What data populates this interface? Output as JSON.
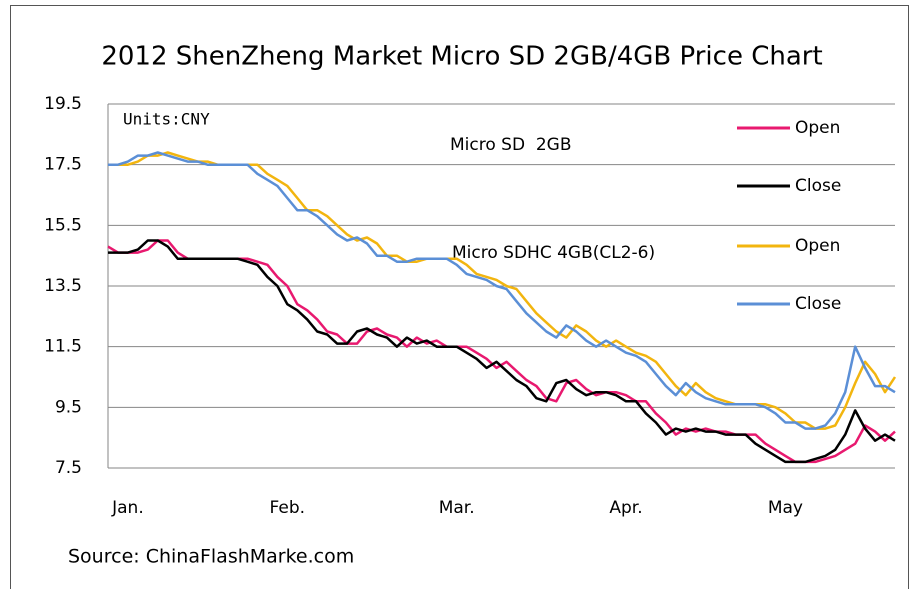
{
  "chart_data": {
    "type": "line",
    "title": "2012 ShenZheng Market Micro SD 2GB/4GB Price Chart",
    "units": "Units:CNY",
    "source": "Source: ChinaFlashMarke.com",
    "annotations": [
      "Micro SD  2GB",
      "Micro SDHC 4GB(CL2-6)"
    ],
    "categories": [
      null,
      null,
      "Jan.",
      null,
      null,
      null,
      null,
      null,
      null,
      null,
      null,
      null,
      null,
      null,
      null,
      null,
      null,
      null,
      "Feb.",
      null,
      null,
      null,
      null,
      null,
      null,
      null,
      null,
      null,
      null,
      null,
      null,
      null,
      null,
      null,
      null,
      "Mar.",
      null,
      null,
      null,
      null,
      null,
      null,
      null,
      null,
      null,
      null,
      null,
      null,
      null,
      null,
      null,
      null,
      "Apr.",
      null,
      null,
      null,
      null,
      null,
      null,
      null,
      null,
      null,
      null,
      null,
      null,
      null,
      null,
      null,
      "May",
      null,
      null,
      null,
      null,
      null,
      null,
      null,
      null,
      null,
      null,
      null
    ],
    "series": [
      {
        "name": "Open",
        "color": "#e8196f",
        "values": [
          14.8,
          14.6,
          14.6,
          14.6,
          14.7,
          15.0,
          15.0,
          14.6,
          14.4,
          14.4,
          14.4,
          14.4,
          14.4,
          14.4,
          14.4,
          14.3,
          14.2,
          13.8,
          13.5,
          12.9,
          12.7,
          12.4,
          12.0,
          11.9,
          11.6,
          11.6,
          12.0,
          12.1,
          11.9,
          11.8,
          11.5,
          11.8,
          11.6,
          11.7,
          11.5,
          11.5,
          11.5,
          11.3,
          11.1,
          10.8,
          11.0,
          10.7,
          10.4,
          10.2,
          9.8,
          9.7,
          10.3,
          10.4,
          10.1,
          9.9,
          10.0,
          10.0,
          9.9,
          9.7,
          9.7,
          9.3,
          9.0,
          8.6,
          8.8,
          8.7,
          8.8,
          8.7,
          8.7,
          8.6,
          8.6,
          8.6,
          8.3,
          8.1,
          7.9,
          7.7,
          7.7,
          7.7,
          7.8,
          7.9,
          8.1,
          8.3,
          8.9,
          8.7,
          8.4,
          8.7
        ]
      },
      {
        "name": "Close",
        "color": "#000000",
        "values": [
          14.6,
          14.6,
          14.6,
          14.7,
          15.0,
          15.0,
          14.8,
          14.4,
          14.4,
          14.4,
          14.4,
          14.4,
          14.4,
          14.4,
          14.3,
          14.2,
          13.8,
          13.5,
          12.9,
          12.7,
          12.4,
          12.0,
          11.9,
          11.6,
          11.6,
          12.0,
          12.1,
          11.9,
          11.8,
          11.5,
          11.8,
          11.6,
          11.7,
          11.5,
          11.5,
          11.5,
          11.3,
          11.1,
          10.8,
          11.0,
          10.7,
          10.4,
          10.2,
          9.8,
          9.7,
          10.3,
          10.4,
          10.1,
          9.9,
          10.0,
          10.0,
          9.9,
          9.7,
          9.7,
          9.3,
          9.0,
          8.6,
          8.8,
          8.7,
          8.8,
          8.7,
          8.7,
          8.6,
          8.6,
          8.6,
          8.3,
          8.1,
          7.9,
          7.7,
          7.7,
          7.7,
          7.8,
          7.9,
          8.1,
          8.6,
          9.4,
          8.8,
          8.4,
          8.6,
          8.4
        ]
      },
      {
        "name": "Open",
        "color": "#f2b50f",
        "values": [
          17.5,
          17.5,
          17.5,
          17.6,
          17.8,
          17.8,
          17.9,
          17.8,
          17.7,
          17.6,
          17.6,
          17.5,
          17.5,
          17.5,
          17.5,
          17.5,
          17.2,
          17.0,
          16.8,
          16.4,
          16.0,
          16.0,
          15.8,
          15.5,
          15.2,
          15.0,
          15.1,
          14.9,
          14.5,
          14.5,
          14.3,
          14.3,
          14.4,
          14.4,
          14.4,
          14.4,
          14.2,
          13.9,
          13.8,
          13.7,
          13.5,
          13.4,
          13.0,
          12.6,
          12.3,
          12.0,
          11.8,
          12.2,
          12.0,
          11.7,
          11.5,
          11.7,
          11.5,
          11.3,
          11.2,
          11.0,
          10.6,
          10.2,
          9.9,
          10.3,
          10.0,
          9.8,
          9.7,
          9.6,
          9.6,
          9.6,
          9.6,
          9.5,
          9.3,
          9.0,
          9.0,
          8.8,
          8.8,
          8.9,
          9.5,
          10.3,
          11.0,
          10.6,
          10.0,
          10.5
        ]
      },
      {
        "name": "Close",
        "color": "#5b8fd6",
        "values": [
          17.5,
          17.5,
          17.6,
          17.8,
          17.8,
          17.9,
          17.8,
          17.7,
          17.6,
          17.6,
          17.5,
          17.5,
          17.5,
          17.5,
          17.5,
          17.2,
          17.0,
          16.8,
          16.4,
          16.0,
          16.0,
          15.8,
          15.5,
          15.2,
          15.0,
          15.1,
          14.9,
          14.5,
          14.5,
          14.3,
          14.3,
          14.4,
          14.4,
          14.4,
          14.4,
          14.2,
          13.9,
          13.8,
          13.7,
          13.5,
          13.4,
          13.0,
          12.6,
          12.3,
          12.0,
          11.8,
          12.2,
          12.0,
          11.7,
          11.5,
          11.7,
          11.5,
          11.3,
          11.2,
          11.0,
          10.6,
          10.2,
          9.9,
          10.3,
          10.0,
          9.8,
          9.7,
          9.6,
          9.6,
          9.6,
          9.6,
          9.5,
          9.3,
          9.0,
          9.0,
          8.8,
          8.8,
          8.9,
          9.3,
          10.0,
          11.5,
          10.8,
          10.2,
          10.2,
          10.0
        ]
      }
    ],
    "ylim": [
      7.5,
      19.5
    ],
    "yticks": [
      7.5,
      9.5,
      11.5,
      13.5,
      15.5,
      17.5,
      19.5
    ],
    "grid": true,
    "legend": "right"
  }
}
